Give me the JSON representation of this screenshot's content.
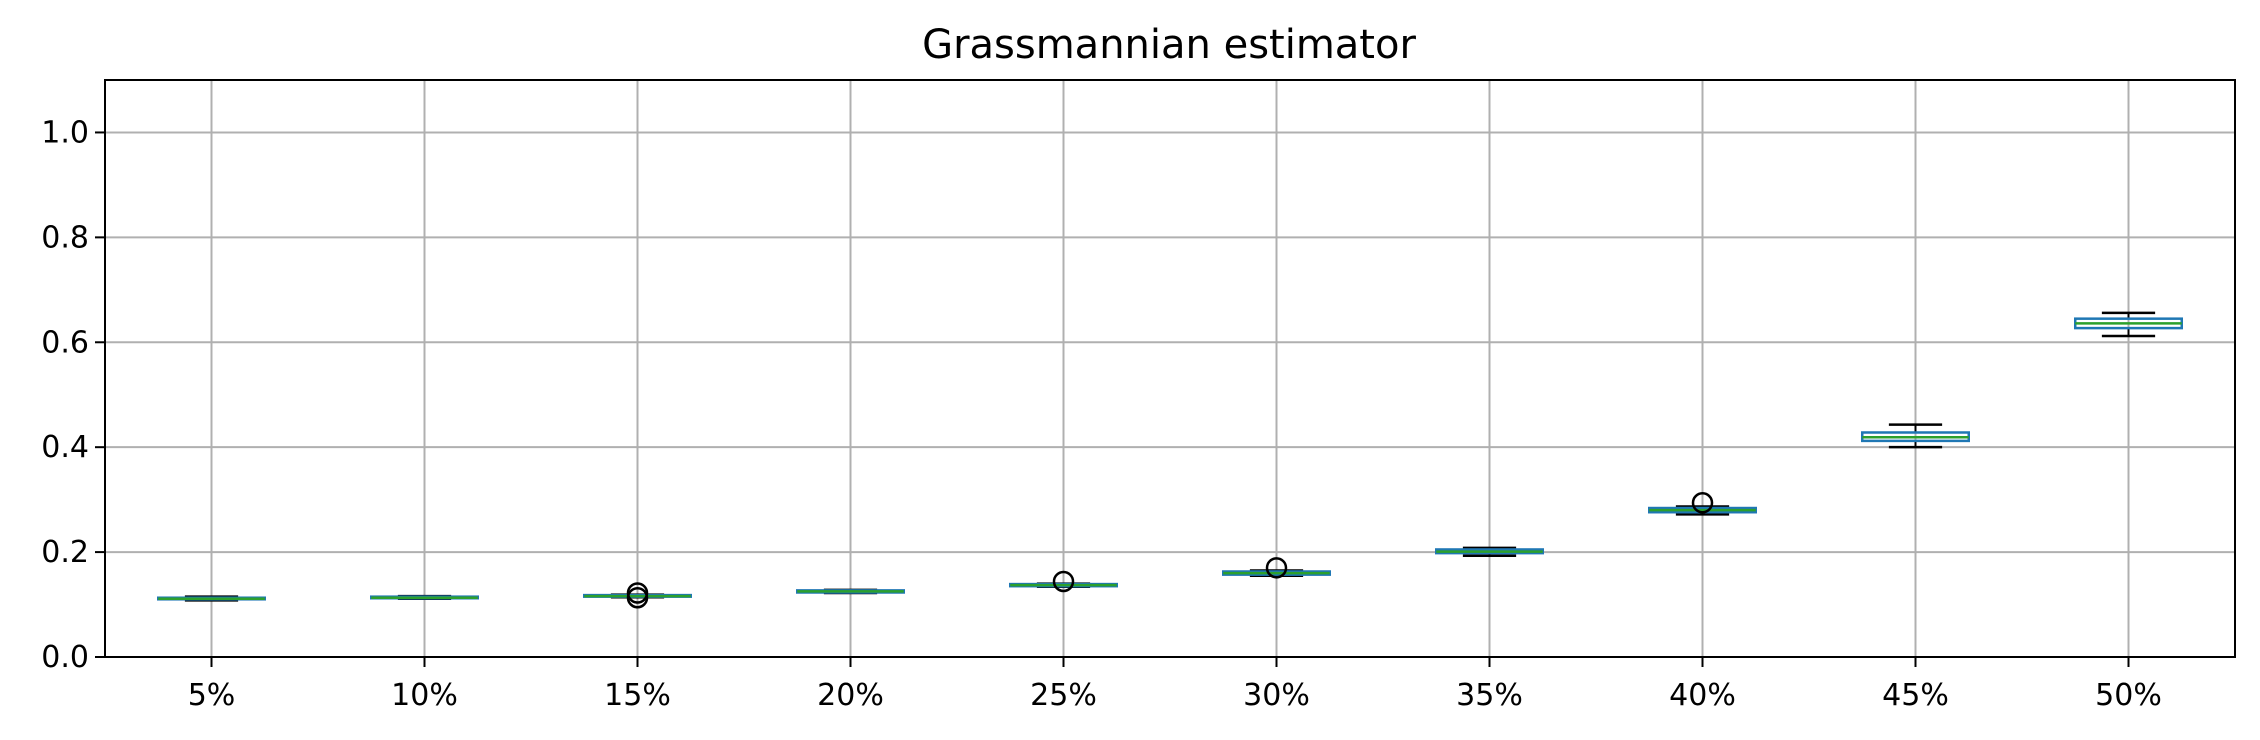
{
  "chart_data": {
    "type": "boxplot",
    "title": "Grassmannian estimator",
    "xlabel": "",
    "ylabel": "",
    "categories": [
      "5%",
      "10%",
      "15%",
      "20%",
      "25%",
      "30%",
      "35%",
      "40%",
      "45%",
      "50%"
    ],
    "boxes": [
      {
        "whislo": 0.108,
        "q1": 0.11,
        "med": 0.111,
        "q3": 0.113,
        "whishi": 0.115,
        "fliers": []
      },
      {
        "whislo": 0.111,
        "q1": 0.112,
        "med": 0.113,
        "q3": 0.115,
        "whishi": 0.116,
        "fliers": []
      },
      {
        "whislo": 0.114,
        "q1": 0.115,
        "med": 0.116,
        "q3": 0.118,
        "whishi": 0.119,
        "fliers": [
          0.113,
          0.122
        ]
      },
      {
        "whislo": 0.122,
        "q1": 0.123,
        "med": 0.125,
        "q3": 0.127,
        "whishi": 0.128,
        "fliers": []
      },
      {
        "whislo": 0.134,
        "q1": 0.135,
        "med": 0.137,
        "q3": 0.139,
        "whishi": 0.14,
        "fliers": [
          0.144
        ]
      },
      {
        "whislo": 0.155,
        "q1": 0.157,
        "med": 0.16,
        "q3": 0.163,
        "whishi": 0.165,
        "fliers": [
          0.17
        ]
      },
      {
        "whislo": 0.193,
        "q1": 0.198,
        "med": 0.201,
        "q3": 0.205,
        "whishi": 0.208,
        "fliers": []
      },
      {
        "whislo": 0.272,
        "q1": 0.276,
        "med": 0.28,
        "q3": 0.284,
        "whishi": 0.287,
        "fliers": [
          0.294
        ]
      },
      {
        "whislo": 0.4,
        "q1": 0.412,
        "med": 0.419,
        "q3": 0.428,
        "whishi": 0.443,
        "fliers": []
      },
      {
        "whislo": 0.612,
        "q1": 0.627,
        "med": 0.636,
        "q3": 0.645,
        "whishi": 0.656,
        "fliers": []
      }
    ],
    "ylim": [
      0.0,
      1.1
    ],
    "yticks": [
      0.0,
      0.2,
      0.4,
      0.6,
      0.8,
      1.0
    ],
    "ytick_labels": [
      "0.0",
      "0.2",
      "0.4",
      "0.6",
      "0.8",
      "1.0"
    ],
    "grid": true,
    "colors": {
      "box": "#1f77b4",
      "median": "#2ca02c",
      "whisker": "#000000",
      "flier": "#000000",
      "grid": "#b0b0b0",
      "axes": "#000000"
    }
  }
}
